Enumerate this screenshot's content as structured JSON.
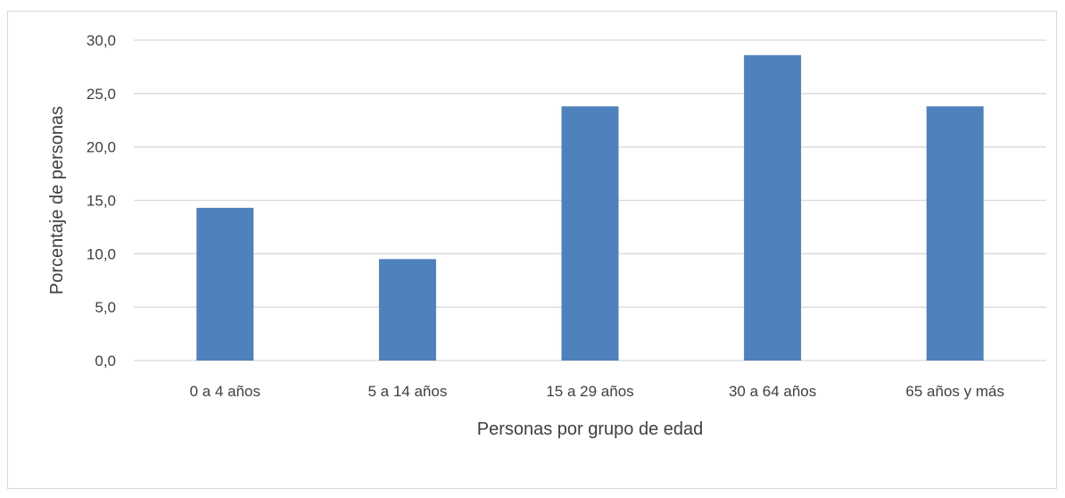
{
  "chart_data": {
    "type": "bar",
    "title": "",
    "xlabel": "Personas por grupo de edad",
    "ylabel": "Porcentaje de personas",
    "categories": [
      "0 a 4 años",
      "5 a 14 años",
      "15 a 29 años",
      "30 a 64 años",
      "65 años y más"
    ],
    "values": [
      14.3,
      9.5,
      23.8,
      28.6,
      23.8
    ],
    "ylim": [
      0,
      30
    ],
    "yticks": [
      "0,0",
      "5,0",
      "10,0",
      "15,0",
      "20,0",
      "25,0",
      "30,0"
    ],
    "grid": true,
    "legend": "none",
    "bar_color": "#4f81bd",
    "grid_color": "#d9d9d9"
  }
}
